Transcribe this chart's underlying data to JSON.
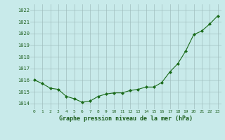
{
  "x": [
    0,
    1,
    2,
    3,
    4,
    5,
    6,
    7,
    8,
    9,
    10,
    11,
    12,
    13,
    14,
    15,
    16,
    17,
    18,
    19,
    20,
    21,
    22,
    23
  ],
  "y": [
    1016.0,
    1015.7,
    1015.3,
    1015.2,
    1014.6,
    1014.4,
    1014.1,
    1014.2,
    1014.6,
    1014.8,
    1014.9,
    1014.9,
    1015.1,
    1015.2,
    1015.4,
    1015.4,
    1015.8,
    1016.7,
    1017.4,
    1018.5,
    1019.9,
    1020.2,
    1020.8,
    1021.5
  ],
  "line_color": "#1a6b1a",
  "marker_color": "#1a6b1a",
  "bg_color": "#c8eaea",
  "grid_color": "#a0bebe",
  "xlabel": "Graphe pression niveau de la mer (hPa)",
  "xlabel_color": "#1a5c1a",
  "tick_label_color": "#1a5c1a",
  "ylim_min": 1013.5,
  "ylim_max": 1022.5,
  "xlim_min": -0.5,
  "xlim_max": 23.5,
  "yticks": [
    1014,
    1015,
    1016,
    1017,
    1018,
    1019,
    1020,
    1021,
    1022
  ],
  "xticks": [
    0,
    1,
    2,
    3,
    4,
    5,
    6,
    7,
    8,
    9,
    10,
    11,
    12,
    13,
    14,
    15,
    16,
    17,
    18,
    19,
    20,
    21,
    22,
    23
  ]
}
